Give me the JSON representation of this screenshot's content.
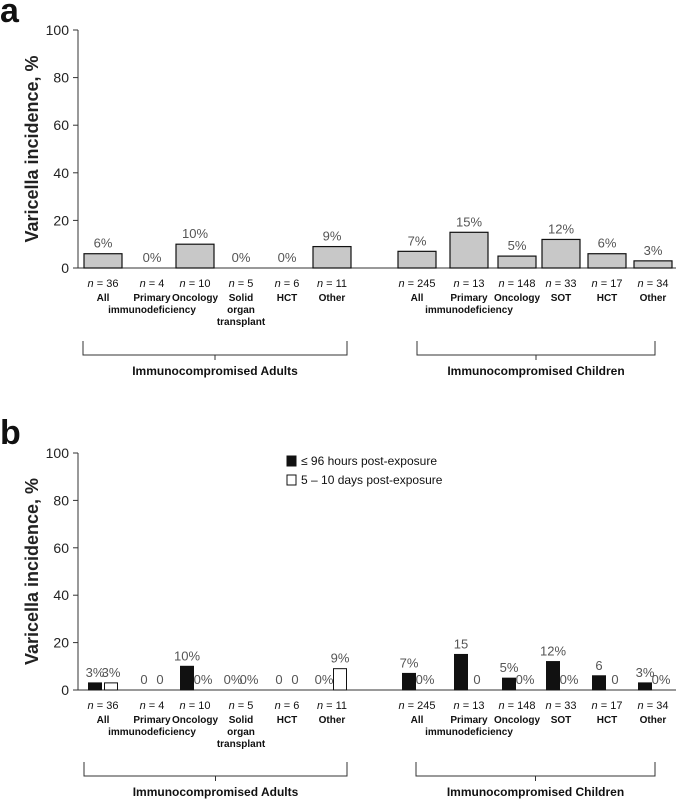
{
  "chart_data": [
    {
      "panel": "a",
      "type": "bar",
      "ylabel": "Varicella incidence, %",
      "ylim": [
        0,
        100
      ],
      "yticks": [
        "0",
        "20",
        "40",
        "60",
        "80",
        "100"
      ],
      "bar_color": "#c8c8c8",
      "groups": [
        {
          "name": "Immunocompromised Adults",
          "bars": [
            {
              "category": [
                "All"
              ],
              "n": "36",
              "value": 6,
              "label": "6%"
            },
            {
              "category": [
                "Primary",
                "immunodeficiency"
              ],
              "n": "4",
              "value": 0,
              "label": "0%"
            },
            {
              "category": [
                "Oncology"
              ],
              "n": "10",
              "value": 10,
              "label": "10%"
            },
            {
              "category": [
                "Solid",
                "organ",
                "transplant"
              ],
              "n": "5",
              "value": 0,
              "label": "0%"
            },
            {
              "category": [
                "HCT"
              ],
              "n": "6",
              "value": 0,
              "label": "0%"
            },
            {
              "category": [
                "Other"
              ],
              "n": "11",
              "value": 9,
              "label": "9%"
            }
          ]
        },
        {
          "name": "Immunocompromised Children",
          "bars": [
            {
              "category": [
                "All"
              ],
              "n": "245",
              "value": 7,
              "label": "7%"
            },
            {
              "category": [
                "Primary",
                "immunodeficiency"
              ],
              "n": "13",
              "value": 15,
              "label": "15%"
            },
            {
              "category": [
                "Oncology"
              ],
              "n": "148",
              "value": 5,
              "label": "5%"
            },
            {
              "category": [
                "SOT"
              ],
              "n": "33",
              "value": 12,
              "label": "12%"
            },
            {
              "category": [
                "HCT"
              ],
              "n": "17",
              "value": 6,
              "label": "6%"
            },
            {
              "category": [
                "Other"
              ],
              "n": "34",
              "value": 3,
              "label": "3%"
            }
          ]
        }
      ]
    },
    {
      "panel": "b",
      "type": "bar",
      "ylabel": "Varicella incidence, %",
      "ylim": [
        0,
        100
      ],
      "yticks": [
        "0",
        "20",
        "40",
        "60",
        "80",
        "100"
      ],
      "series": [
        {
          "name": "≤ 96 hours post-exposure",
          "color": "#111111"
        },
        {
          "name": "5 – 10 days post-exposure",
          "color": "#ffffff"
        }
      ],
      "groups": [
        {
          "name": "Immunocompromised Adults",
          "bars": [
            {
              "category": [
                "All"
              ],
              "n": "36",
              "values": [
                3,
                3
              ],
              "labels": [
                "3%",
                "3%"
              ]
            },
            {
              "category": [
                "Primary",
                "immunodeficiency"
              ],
              "n": "4",
              "values": [
                0,
                0
              ],
              "labels": [
                "0",
                "0"
              ]
            },
            {
              "category": [
                "Oncology"
              ],
              "n": "10",
              "values": [
                10,
                0
              ],
              "labels": [
                "10%",
                "0%"
              ]
            },
            {
              "category": [
                "Solid",
                "organ",
                "transplant"
              ],
              "n": "5",
              "values": [
                0,
                0
              ],
              "labels": [
                "0%",
                "0%"
              ]
            },
            {
              "category": [
                "HCT"
              ],
              "n": "6",
              "values": [
                0,
                0
              ],
              "labels": [
                "0",
                "0"
              ]
            },
            {
              "category": [
                "Other"
              ],
              "n": "11",
              "values": [
                0,
                9
              ],
              "labels": [
                "0%",
                "9%"
              ]
            }
          ]
        },
        {
          "name": "Immunocompromised Children",
          "bars": [
            {
              "category": [
                "All"
              ],
              "n": "245",
              "values": [
                7,
                0
              ],
              "labels": [
                "7%",
                "0%"
              ]
            },
            {
              "category": [
                "Primary",
                "immunodeficiency"
              ],
              "n": "13",
              "values": [
                15,
                0
              ],
              "labels": [
                "15",
                "0"
              ]
            },
            {
              "category": [
                "Oncology"
              ],
              "n": "148",
              "values": [
                5,
                0
              ],
              "labels": [
                "5%",
                "0%"
              ]
            },
            {
              "category": [
                "SOT"
              ],
              "n": "33",
              "values": [
                12,
                0
              ],
              "labels": [
                "12%",
                "0%"
              ]
            },
            {
              "category": [
                "HCT"
              ],
              "n": "17",
              "values": [
                6,
                0
              ],
              "labels": [
                "6",
                "0"
              ]
            },
            {
              "category": [
                "Other"
              ],
              "n": "34",
              "values": [
                3,
                0
              ],
              "labels": [
                "3%",
                "0%"
              ]
            }
          ]
        }
      ]
    }
  ]
}
